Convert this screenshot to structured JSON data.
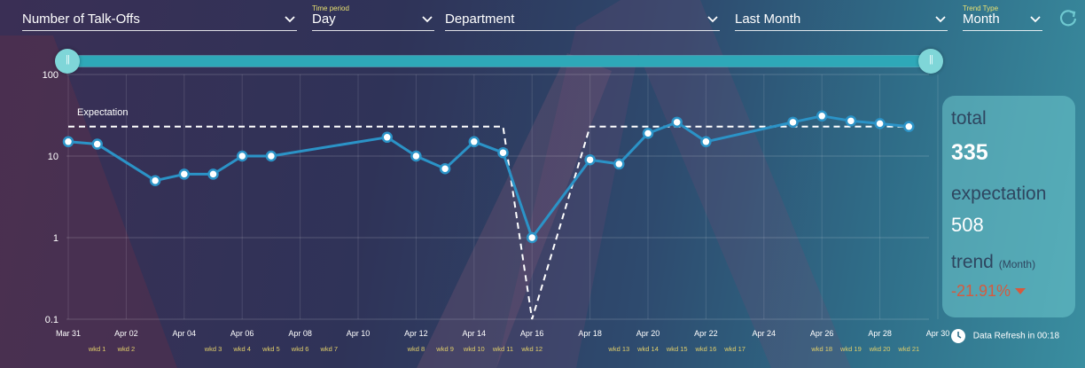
{
  "topbar": {
    "metric": "Number of Talk-Offs",
    "time_period_caption": "Time period",
    "time_period": "Day",
    "department": "Department",
    "range": "Last Month",
    "trend_type_caption": "Trend Type",
    "trend_type": "Month"
  },
  "stats": {
    "total_label": "total",
    "total_value": "335",
    "expectation_label": "expectation",
    "expectation_value": "508",
    "trend_label": "trend",
    "trend_sub": "(Month)",
    "trend_value": "-21.91%",
    "trend_color": "#d65a3e"
  },
  "refresh_note": "Data Refresh in 00:18",
  "colors": {
    "line": "#2b93c7",
    "expectation": "#ffffff",
    "week_label": "#e2cf6a"
  },
  "chart_data": {
    "type": "line",
    "y_scale": "log",
    "ylim": [
      0.1,
      100
    ],
    "y_ticks": [
      "0.1",
      "1",
      "10",
      "100"
    ],
    "x_ticks": [
      "Mar 31",
      "Apr 02",
      "Apr 04",
      "Apr 06",
      "Apr 08",
      "Apr 10",
      "Apr 12",
      "Apr 14",
      "Apr 16",
      "Apr 18",
      "Apr 20",
      "Apr 22",
      "Apr 24",
      "Apr 26",
      "Apr 28",
      "Apr 30"
    ],
    "week_labels": [
      {
        "date": "Apr 01",
        "label": "wkd 1"
      },
      {
        "date": "Apr 02",
        "label": "wkd 2"
      },
      {
        "date": "Apr 05",
        "label": "wkd 3"
      },
      {
        "date": "Apr 06",
        "label": "wkd 4"
      },
      {
        "date": "Apr 07",
        "label": "wkd 5"
      },
      {
        "date": "Apr 08",
        "label": "wkd 6"
      },
      {
        "date": "Apr 09",
        "label": "wkd 7"
      },
      {
        "date": "Apr 12",
        "label": "wkd 8"
      },
      {
        "date": "Apr 13",
        "label": "wkd 9"
      },
      {
        "date": "Apr 14",
        "label": "wkd 10"
      },
      {
        "date": "Apr 15",
        "label": "wkd 11"
      },
      {
        "date": "Apr 16",
        "label": "wkd 12"
      },
      {
        "date": "Apr 19",
        "label": "wkd 13"
      },
      {
        "date": "Apr 20",
        "label": "wkd 14"
      },
      {
        "date": "Apr 21",
        "label": "wkd 15"
      },
      {
        "date": "Apr 22",
        "label": "wkd 16"
      },
      {
        "date": "Apr 23",
        "label": "wkd 17"
      },
      {
        "date": "Apr 26",
        "label": "wkd 18"
      },
      {
        "date": "Apr 27",
        "label": "wkd 19"
      },
      {
        "date": "Apr 28",
        "label": "wkd 20"
      },
      {
        "date": "Apr 29",
        "label": "wkd 21"
      }
    ],
    "series": [
      {
        "values": [
          {
            "x": "Mar 31",
            "y": 15
          },
          {
            "x": "Apr 01",
            "y": 14
          },
          {
            "x": "Apr 03",
            "y": 5
          },
          {
            "x": "Apr 04",
            "y": 6
          },
          {
            "x": "Apr 05",
            "y": 6
          },
          {
            "x": "Apr 06",
            "y": 10
          },
          {
            "x": "Apr 07",
            "y": 10
          },
          {
            "x": "Apr 11",
            "y": 17
          },
          {
            "x": "Apr 12",
            "y": 10
          },
          {
            "x": "Apr 13",
            "y": 7
          },
          {
            "x": "Apr 14",
            "y": 15
          },
          {
            "x": "Apr 15",
            "y": 11
          },
          {
            "x": "Apr 16",
            "y": 1
          },
          {
            "x": "Apr 18",
            "y": 9
          },
          {
            "x": "Apr 19",
            "y": 8
          },
          {
            "x": "Apr 20",
            "y": 19
          },
          {
            "x": "Apr 21",
            "y": 26
          },
          {
            "x": "Apr 22",
            "y": 15
          },
          {
            "x": "Apr 25",
            "y": 26
          },
          {
            "x": "Apr 26",
            "y": 31
          },
          {
            "x": "Apr 27",
            "y": 27
          },
          {
            "x": "Apr 28",
            "y": 25
          },
          {
            "x": "Apr 29",
            "y": 23
          }
        ]
      },
      {
        "name": "Expectation",
        "style": "dashed",
        "values": [
          {
            "x": "Mar 31",
            "y": 23
          },
          {
            "x": "Apr 15",
            "y": 23
          },
          {
            "x": "Apr 16",
            "y": 0.1
          },
          {
            "x": "Apr 18",
            "y": 23
          },
          {
            "x": "Apr 29",
            "y": 23
          }
        ]
      }
    ]
  }
}
